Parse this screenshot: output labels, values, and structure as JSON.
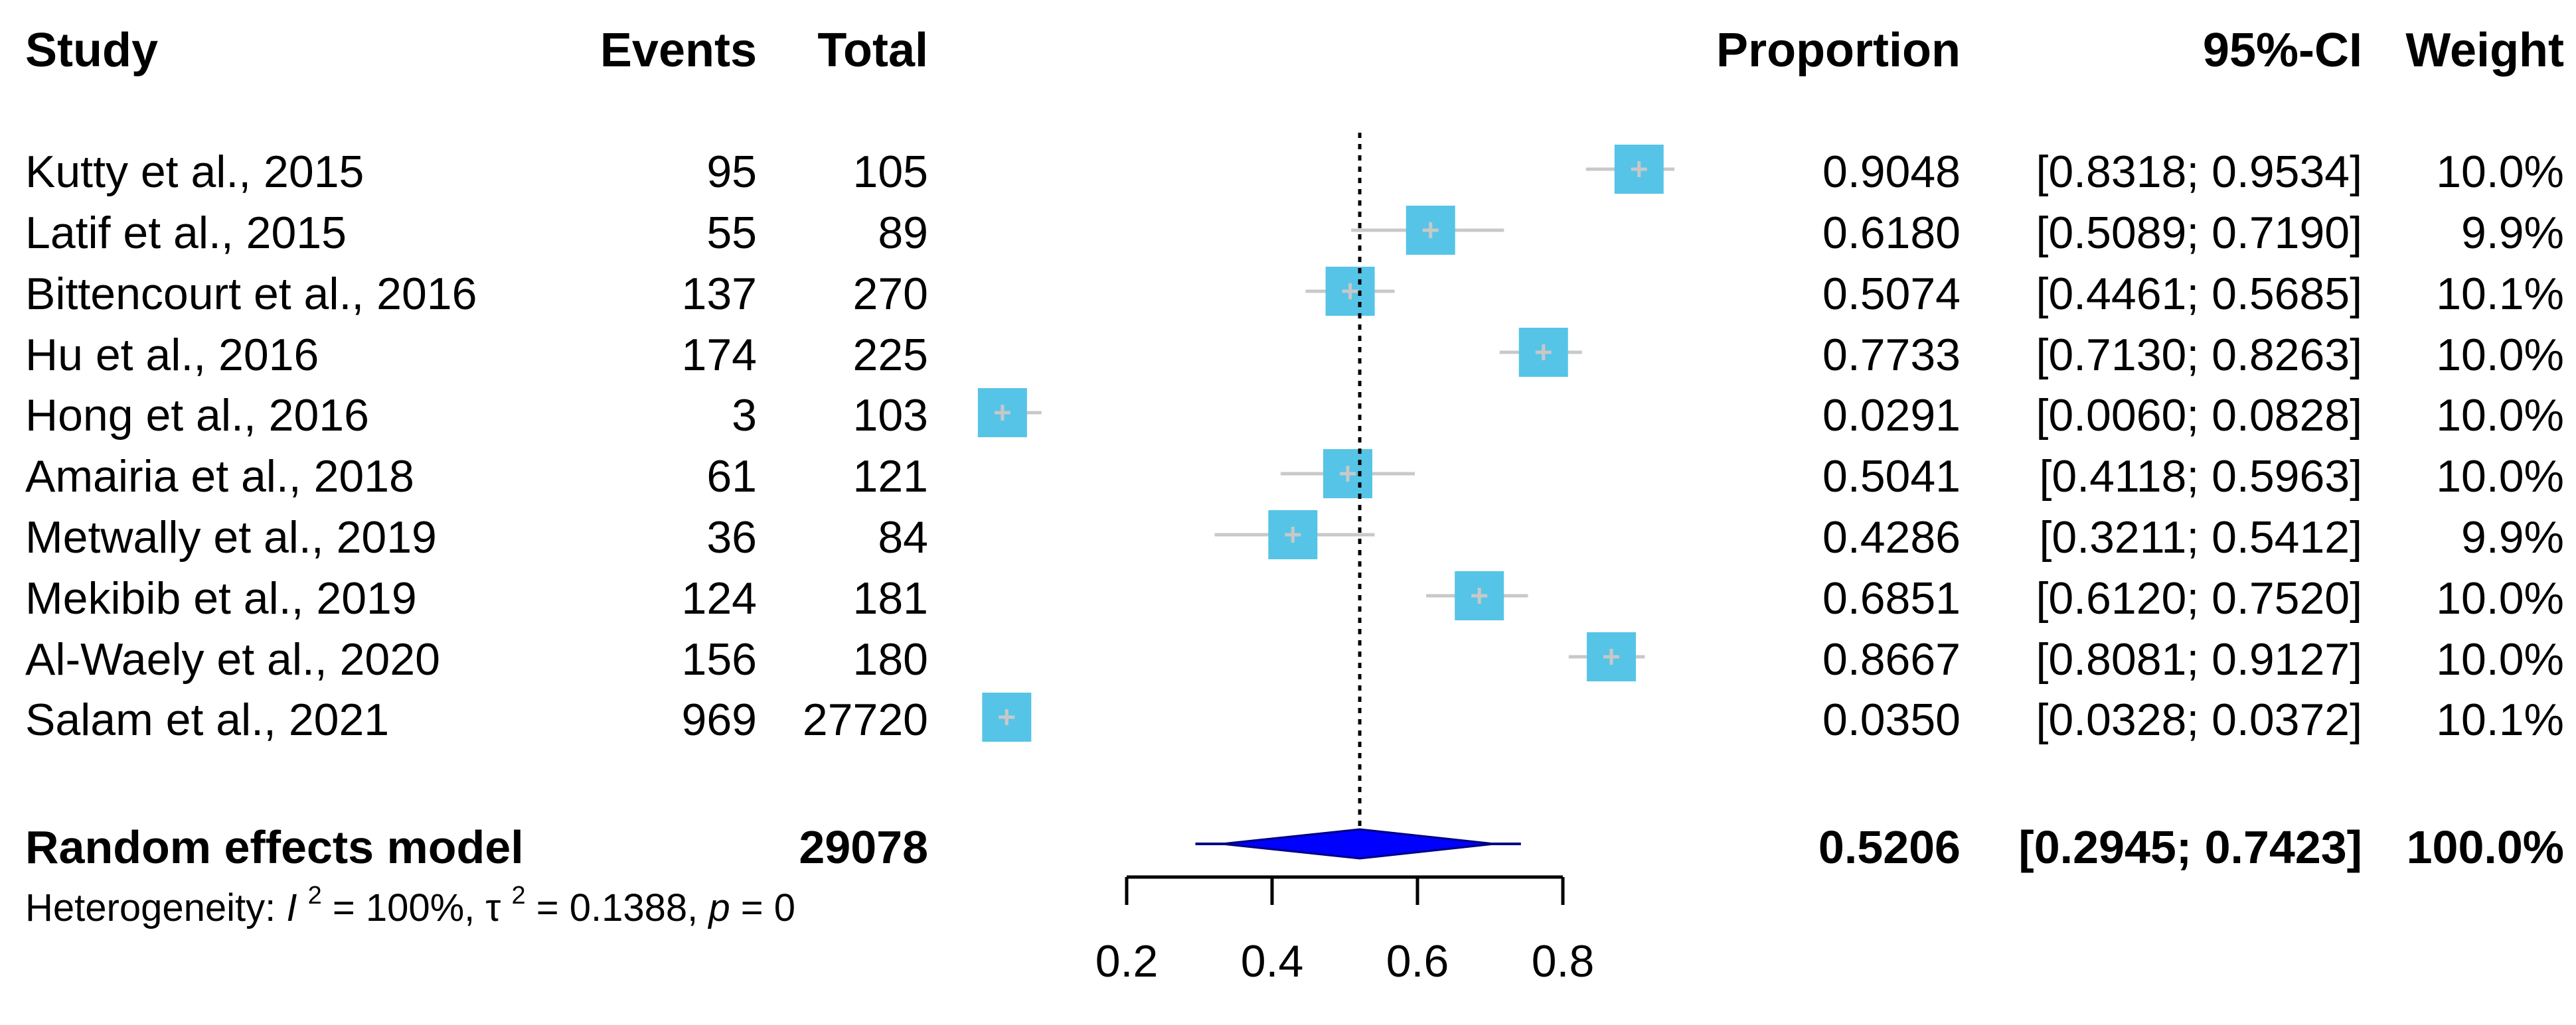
{
  "chart_data": {
    "type": "forest",
    "headers": {
      "study": "Study",
      "events": "Events",
      "total": "Total",
      "proportion": "Proportion",
      "ci": "95%-CI",
      "weight": "Weight"
    },
    "studies": [
      {
        "study": "Kutty et al., 2015",
        "events": "95",
        "total": "105",
        "proportion": 0.9048,
        "proportion_label": "0.9048",
        "lower": 0.8318,
        "upper": 0.9534,
        "ci_label": "[0.8318; 0.9534]",
        "weight": "10.0%"
      },
      {
        "study": "Latif et al., 2015",
        "events": "55",
        "total": "89",
        "proportion": 0.618,
        "proportion_label": "0.6180",
        "lower": 0.5089,
        "upper": 0.719,
        "ci_label": "[0.5089; 0.7190]",
        "weight": "9.9%"
      },
      {
        "study": "Bittencourt et al., 2016",
        "events": "137",
        "total": "270",
        "proportion": 0.5074,
        "proportion_label": "0.5074",
        "lower": 0.4461,
        "upper": 0.5685,
        "ci_label": "[0.4461; 0.5685]",
        "weight": "10.1%"
      },
      {
        "study": "Hu et al., 2016",
        "events": "174",
        "total": "225",
        "proportion": 0.7733,
        "proportion_label": "0.7733",
        "lower": 0.713,
        "upper": 0.8263,
        "ci_label": "[0.7130; 0.8263]",
        "weight": "10.0%"
      },
      {
        "study": "Hong et al., 2016",
        "events": "3",
        "total": "103",
        "proportion": 0.0291,
        "proportion_label": "0.0291",
        "lower": 0.006,
        "upper": 0.0828,
        "ci_label": "[0.0060; 0.0828]",
        "weight": "10.0%"
      },
      {
        "study": "Amairia et al., 2018",
        "events": "61",
        "total": "121",
        "proportion": 0.5041,
        "proportion_label": "0.5041",
        "lower": 0.4118,
        "upper": 0.5963,
        "ci_label": "[0.4118; 0.5963]",
        "weight": "10.0%"
      },
      {
        "study": "Metwally et al., 2019",
        "events": "36",
        "total": "84",
        "proportion": 0.4286,
        "proportion_label": "0.4286",
        "lower": 0.3211,
        "upper": 0.5412,
        "ci_label": "[0.3211; 0.5412]",
        "weight": "9.9%"
      },
      {
        "study": "Mekibib et al., 2019",
        "events": "124",
        "total": "181",
        "proportion": 0.6851,
        "proportion_label": "0.6851",
        "lower": 0.612,
        "upper": 0.752,
        "ci_label": "[0.6120; 0.7520]",
        "weight": "10.0%"
      },
      {
        "study": "Al-Waely et al., 2020",
        "events": "156",
        "total": "180",
        "proportion": 0.8667,
        "proportion_label": "0.8667",
        "lower": 0.8081,
        "upper": 0.9127,
        "ci_label": "[0.8081; 0.9127]",
        "weight": "10.0%"
      },
      {
        "study": "Salam et al., 2021",
        "events": "969",
        "total": "27720",
        "proportion": 0.035,
        "proportion_label": "0.0350",
        "lower": 0.0328,
        "upper": 0.0372,
        "ci_label": "[0.0328; 0.0372]",
        "weight": "10.1%"
      }
    ],
    "pooled": {
      "label": "Random effects model",
      "total": "29078",
      "proportion": 0.5206,
      "proportion_label": "0.5206",
      "lower": 0.2945,
      "upper": 0.7423,
      "ci_label": "[0.2945; 0.7423]",
      "weight": "100.0%"
    },
    "heterogeneity": {
      "prefix": "Heterogeneity: ",
      "i2_symbol": "I",
      "i2_value": " = 100%, ",
      "tau_symbol": "τ",
      "tau_value": " = 0.1388, ",
      "p_symbol": "p",
      "p_value": " = 0",
      "superscript": "2"
    },
    "axis": {
      "xlim": [
        0.2,
        0.8
      ],
      "ticks": [
        0.2,
        0.4,
        0.6,
        0.8
      ],
      "tick_labels": [
        "0.2",
        "0.4",
        "0.6",
        "0.8"
      ],
      "reference_line": 0.5206
    },
    "colors": {
      "study_box": "#56c4e6",
      "ci_line": "#c8c8c8",
      "diamond": "#0000ff",
      "diamond_edge": "#000080",
      "text": "#000000"
    }
  }
}
